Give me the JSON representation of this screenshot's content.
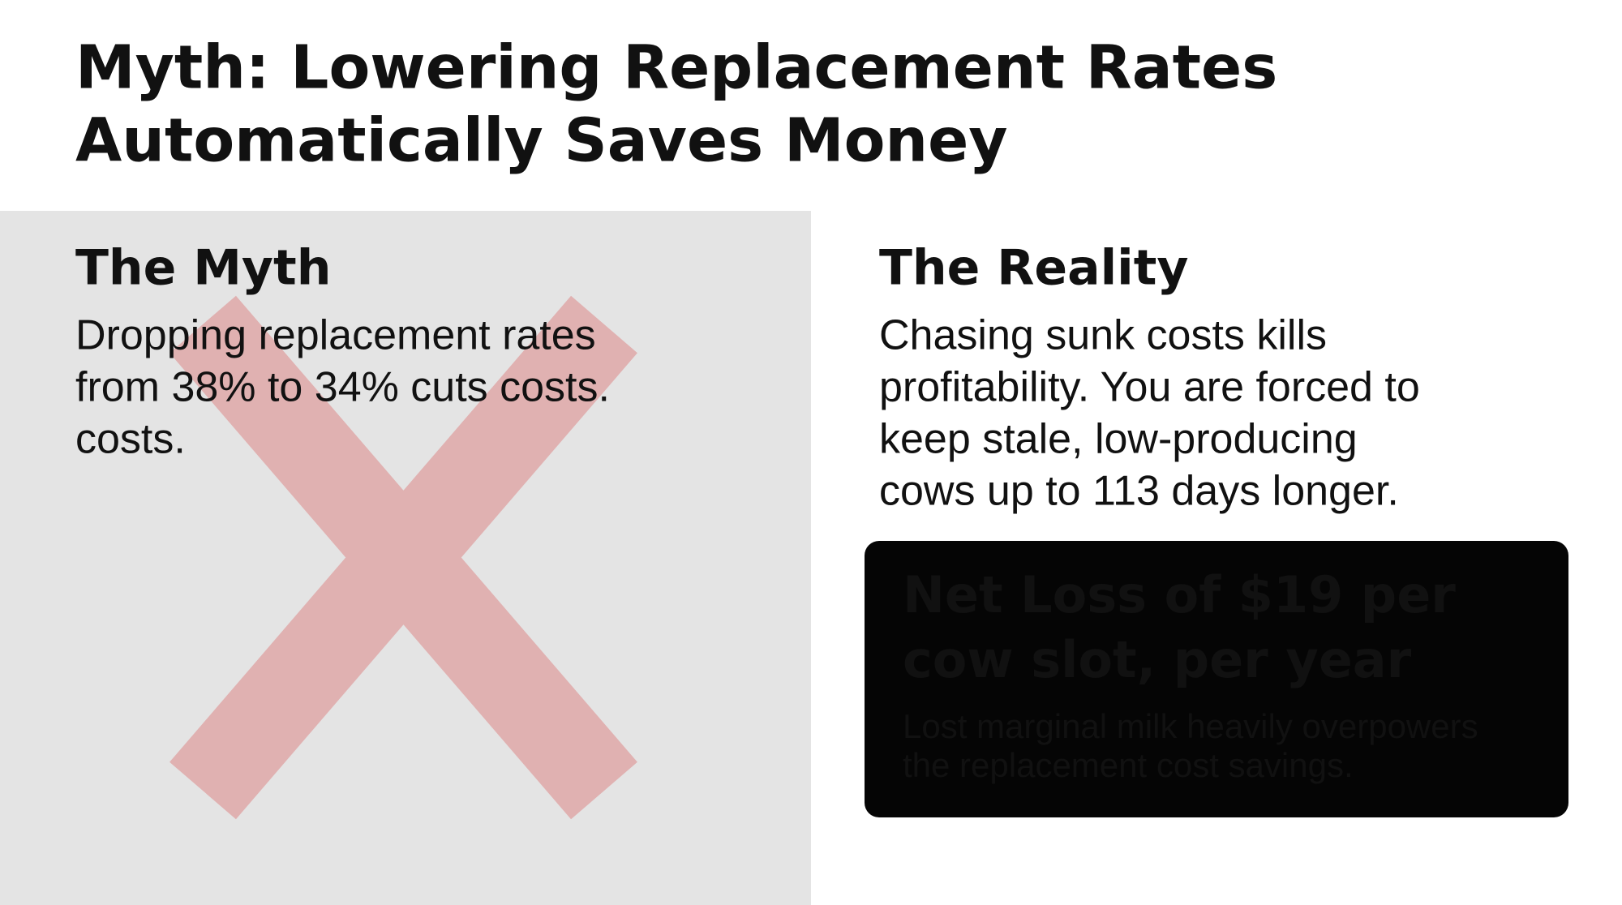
{
  "title": {
    "lines": [
      "Myth: Lowering Replacement Rates",
      "Automatically Saves Money"
    ]
  },
  "myth": {
    "heading": "The Myth",
    "lines": [
      "Dropping replacement rates",
      "from 38% to 34% cuts costs.",
      "costs."
    ]
  },
  "reality": {
    "heading": "The Reality",
    "lines": [
      "Chasing sunk costs kills",
      "profitability. You are forced to",
      "keep stale, low-producing",
      "cows up to 113 days longer."
    ],
    "callout": {
      "headline": [
        "Net Loss of $19 per",
        "cow slot, per year"
      ],
      "body": [
        "Lost marginal milk heavily overpowers",
        "the replacement cost savings."
      ]
    }
  }
}
